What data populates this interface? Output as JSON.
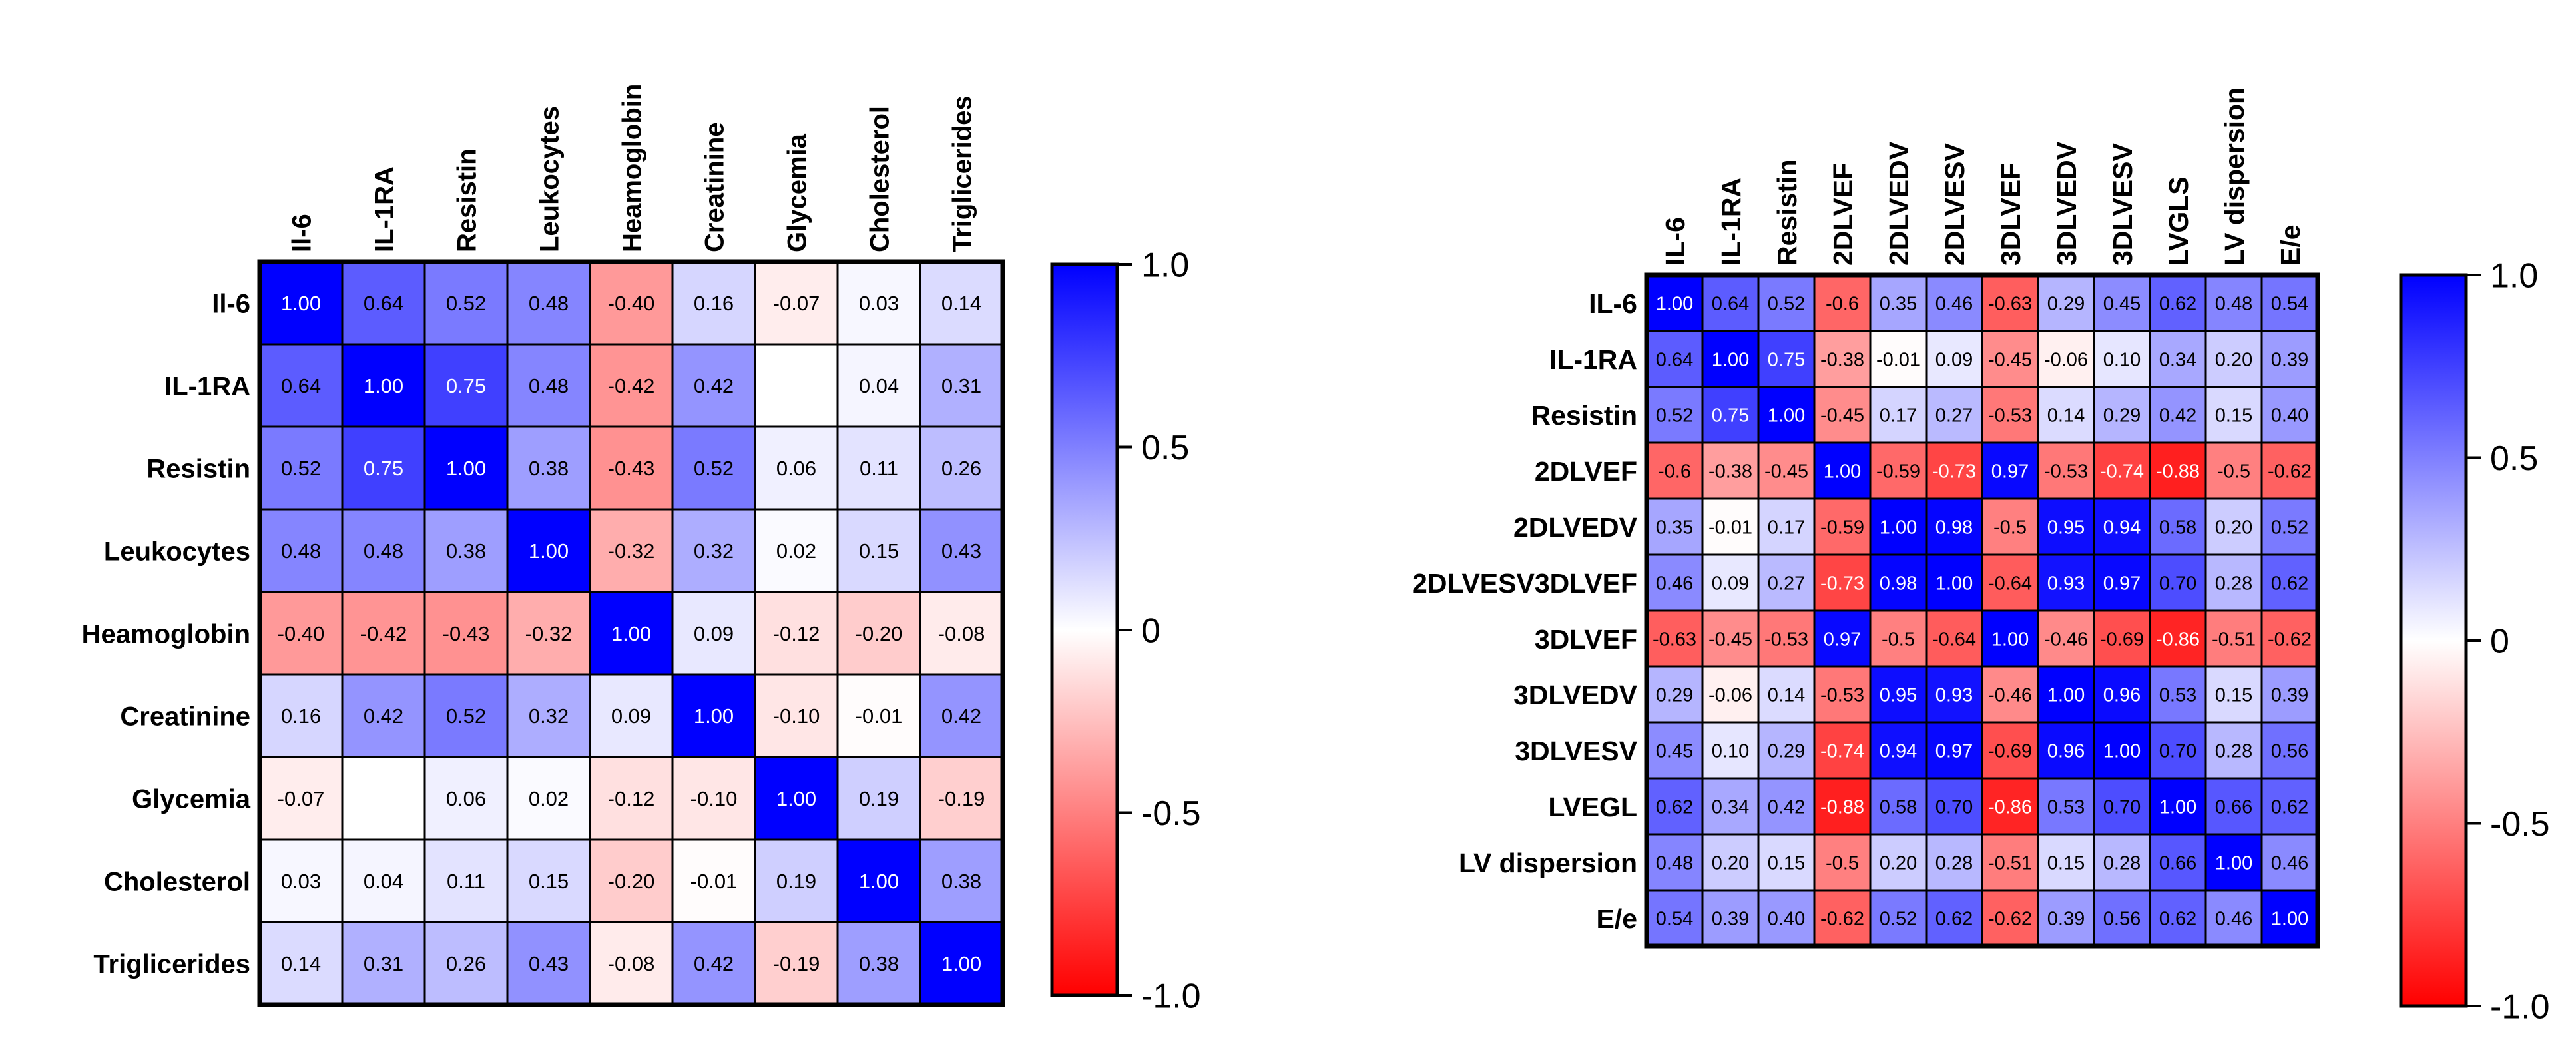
{
  "chart_data": [
    {
      "type": "heatmap",
      "columns": [
        "Il-6",
        "IL-1RA",
        "Resistin",
        "Leukocytes",
        "Heamoglobin",
        "Creatinine",
        "Glycemia",
        "Cholesterol",
        "Triglicerides"
      ],
      "rows": [
        "Il-6",
        "IL-1RA",
        "Resistin",
        "Leukocytes",
        "Heamoglobin",
        "Creatinine",
        "Glycemia",
        "Cholesterol",
        "Triglicerides"
      ],
      "values": [
        [
          1.0,
          0.64,
          0.52,
          0.48,
          -0.4,
          0.16,
          -0.07,
          0.03,
          0.14
        ],
        [
          0.64,
          1.0,
          0.75,
          0.48,
          -0.42,
          0.42,
          null,
          0.04,
          0.31
        ],
        [
          0.52,
          0.75,
          1.0,
          0.38,
          -0.43,
          0.52,
          0.06,
          0.11,
          0.26
        ],
        [
          0.48,
          0.48,
          0.38,
          1.0,
          -0.32,
          0.32,
          0.02,
          0.15,
          0.43
        ],
        [
          -0.4,
          -0.42,
          -0.43,
          -0.32,
          1.0,
          0.09,
          -0.12,
          -0.2,
          -0.08
        ],
        [
          0.16,
          0.42,
          0.52,
          0.32,
          0.09,
          1.0,
          -0.1,
          -0.01,
          0.42
        ],
        [
          -0.07,
          null,
          0.06,
          0.02,
          -0.12,
          -0.1,
          1.0,
          0.19,
          -0.19
        ],
        [
          0.03,
          0.04,
          0.11,
          0.15,
          -0.2,
          -0.01,
          0.19,
          1.0,
          0.38
        ],
        [
          0.14,
          0.31,
          0.26,
          0.43,
          -0.08,
          0.42,
          -0.19,
          0.38,
          1.0
        ]
      ],
      "labels": [
        [
          "1.00",
          "0.64",
          "0.52",
          "0.48",
          "-0.40",
          "0.16",
          "-0.07",
          "0.03",
          "0.14"
        ],
        [
          "0.64",
          "1.00",
          "0.75",
          "0.48",
          "-0.42",
          "0.42",
          "",
          "0.04",
          "0.31"
        ],
        [
          "0.52",
          "0.75",
          "1.00",
          "0.38",
          "-0.43",
          "0.52",
          "0.06",
          "0.11",
          "0.26"
        ],
        [
          "0.48",
          "0.48",
          "0.38",
          "1.00",
          "-0.32",
          "0.32",
          "0.02",
          "0.15",
          "0.43"
        ],
        [
          "-0.40",
          "-0.42",
          "-0.43",
          "-0.32",
          "1.00",
          "0.09",
          "-0.12",
          "-0.20",
          "-0.08"
        ],
        [
          "0.16",
          "0.42",
          "0.52",
          "0.32",
          "0.09",
          "1.00",
          "-0.10",
          "-0.01",
          "0.42"
        ],
        [
          "-0.07",
          "",
          "0.06",
          "0.02",
          "-0.12",
          "-0.10",
          "1.00",
          "0.19",
          "-0.19"
        ],
        [
          "0.03",
          "0.04",
          "0.11",
          "0.15",
          "-0.20",
          "-0.01",
          "0.19",
          "1.00",
          "0.38"
        ],
        [
          "0.14",
          "0.31",
          "0.26",
          "0.43",
          "-0.08",
          "0.42",
          "-0.19",
          "0.38",
          "1.00"
        ]
      ],
      "colorbar": {
        "range": [
          -1.0,
          1.0
        ],
        "ticks": [
          "1.0",
          "0.5",
          "0",
          "-0.5",
          "-1.0"
        ],
        "low_color": "#ff0000",
        "mid_color": "#ffffff",
        "high_color": "#0000ff"
      }
    },
    {
      "type": "heatmap",
      "columns": [
        "IL-6",
        "IL-1RA",
        "Resistin",
        "2DLVEF",
        "2DLVEDV",
        "2DLVESV",
        "3DLVEF",
        "3DLVEDV",
        "3DLVESV",
        "LVGLS",
        "LV dispersion",
        "E/e"
      ],
      "rows": [
        "IL-6",
        "IL-1RA",
        "Resistin",
        "2DLVEF",
        "2DLVEDV",
        "2DLVESV3DLVEF",
        "3DLVEF",
        "3DLVEDV",
        "3DLVESV",
        "LVEGL",
        "LV dispersion",
        "E/e"
      ],
      "values": [
        [
          1.0,
          0.64,
          0.52,
          -0.6,
          0.35,
          0.46,
          -0.63,
          0.29,
          0.45,
          0.62,
          0.48,
          0.54
        ],
        [
          0.64,
          1.0,
          0.75,
          -0.38,
          -0.01,
          0.09,
          -0.45,
          -0.06,
          0.1,
          0.34,
          0.2,
          0.39
        ],
        [
          0.52,
          0.75,
          1.0,
          -0.45,
          0.17,
          0.27,
          -0.53,
          0.14,
          0.29,
          0.42,
          0.15,
          0.4
        ],
        [
          -0.6,
          -0.38,
          -0.45,
          1.0,
          -0.59,
          -0.73,
          0.97,
          -0.53,
          -0.74,
          -0.88,
          -0.5,
          -0.62
        ],
        [
          0.35,
          -0.01,
          0.17,
          -0.59,
          1.0,
          0.98,
          -0.5,
          0.95,
          0.94,
          0.58,
          0.2,
          0.52
        ],
        [
          0.46,
          0.09,
          0.27,
          -0.73,
          0.98,
          1.0,
          -0.64,
          0.93,
          0.97,
          0.7,
          0.28,
          0.62
        ],
        [
          -0.63,
          -0.45,
          -0.53,
          0.97,
          -0.5,
          -0.64,
          1.0,
          -0.46,
          -0.69,
          -0.86,
          -0.51,
          -0.62
        ],
        [
          0.29,
          -0.06,
          0.14,
          -0.53,
          0.95,
          0.93,
          -0.46,
          1.0,
          0.96,
          0.53,
          0.15,
          0.39
        ],
        [
          0.45,
          0.1,
          0.29,
          -0.74,
          0.94,
          0.97,
          -0.69,
          0.96,
          1.0,
          0.7,
          0.28,
          0.56
        ],
        [
          0.62,
          0.34,
          0.42,
          -0.88,
          0.58,
          0.7,
          -0.86,
          0.53,
          0.7,
          1.0,
          0.66,
          0.62
        ],
        [
          0.48,
          0.2,
          0.15,
          -0.5,
          0.2,
          0.28,
          -0.51,
          0.15,
          0.28,
          0.66,
          1.0,
          0.46
        ],
        [
          0.54,
          0.39,
          0.4,
          -0.62,
          0.52,
          0.62,
          -0.62,
          0.39,
          0.56,
          0.62,
          0.46,
          1.0
        ]
      ],
      "labels": [
        [
          "1.00",
          "0.64",
          "0.52",
          "-0.6",
          "0.35",
          "0.46",
          "-0.63",
          "0.29",
          "0.45",
          "0.62",
          "0.48",
          "0.54"
        ],
        [
          "0.64",
          "1.00",
          "0.75",
          "-0.38",
          "-0.01",
          "0.09",
          "-0.45",
          "-0.06",
          "0.10",
          "0.34",
          "0.20",
          "0.39"
        ],
        [
          "0.52",
          "0.75",
          "1.00",
          "-0.45",
          "0.17",
          "0.27",
          "-0.53",
          "0.14",
          "0.29",
          "0.42",
          "0.15",
          "0.40"
        ],
        [
          "-0.6",
          "-0.38",
          "-0.45",
          "1.00",
          "-0.59",
          "-0.73",
          "0.97",
          "-0.53",
          "-0.74",
          "-0.88",
          "-0.5",
          "-0.62"
        ],
        [
          "0.35",
          "-0.01",
          "0.17",
          "-0.59",
          "1.00",
          "0.98",
          "-0.5",
          "0.95",
          "0.94",
          "0.58",
          "0.20",
          "0.52"
        ],
        [
          "0.46",
          "0.09",
          "0.27",
          "-0.73",
          "0.98",
          "1.00",
          "-0.64",
          "0.93",
          "0.97",
          "0.70",
          "0.28",
          "0.62"
        ],
        [
          "-0.63",
          "-0.45",
          "-0.53",
          "0.97",
          "-0.5",
          "-0.64",
          "1.00",
          "-0.46",
          "-0.69",
          "-0.86",
          "-0.51",
          "-0.62"
        ],
        [
          "0.29",
          "-0.06",
          "0.14",
          "-0.53",
          "0.95",
          "0.93",
          "-0.46",
          "1.00",
          "0.96",
          "0.53",
          "0.15",
          "0.39"
        ],
        [
          "0.45",
          "0.10",
          "0.29",
          "-0.74",
          "0.94",
          "0.97",
          "-0.69",
          "0.96",
          "1.00",
          "0.70",
          "0.28",
          "0.56"
        ],
        [
          "0.62",
          "0.34",
          "0.42",
          "-0.88",
          "0.58",
          "0.70",
          "-0.86",
          "0.53",
          "0.70",
          "1.00",
          "0.66",
          "0.62"
        ],
        [
          "0.48",
          "0.20",
          "0.15",
          "-0.5",
          "0.20",
          "0.28",
          "-0.51",
          "0.15",
          "0.28",
          "0.66",
          "1.00",
          "0.46"
        ],
        [
          "0.54",
          "0.39",
          "0.40",
          "-0.62",
          "0.52",
          "0.62",
          "-0.62",
          "0.39",
          "0.56",
          "0.62",
          "0.46",
          "1.00"
        ]
      ],
      "colorbar": {
        "range": [
          -1.0,
          1.0
        ],
        "ticks": [
          "1.0",
          "0.5",
          "0",
          "-0.5",
          "-1.0"
        ],
        "low_color": "#ff0000",
        "mid_color": "#ffffff",
        "high_color": "#0000ff"
      }
    }
  ]
}
